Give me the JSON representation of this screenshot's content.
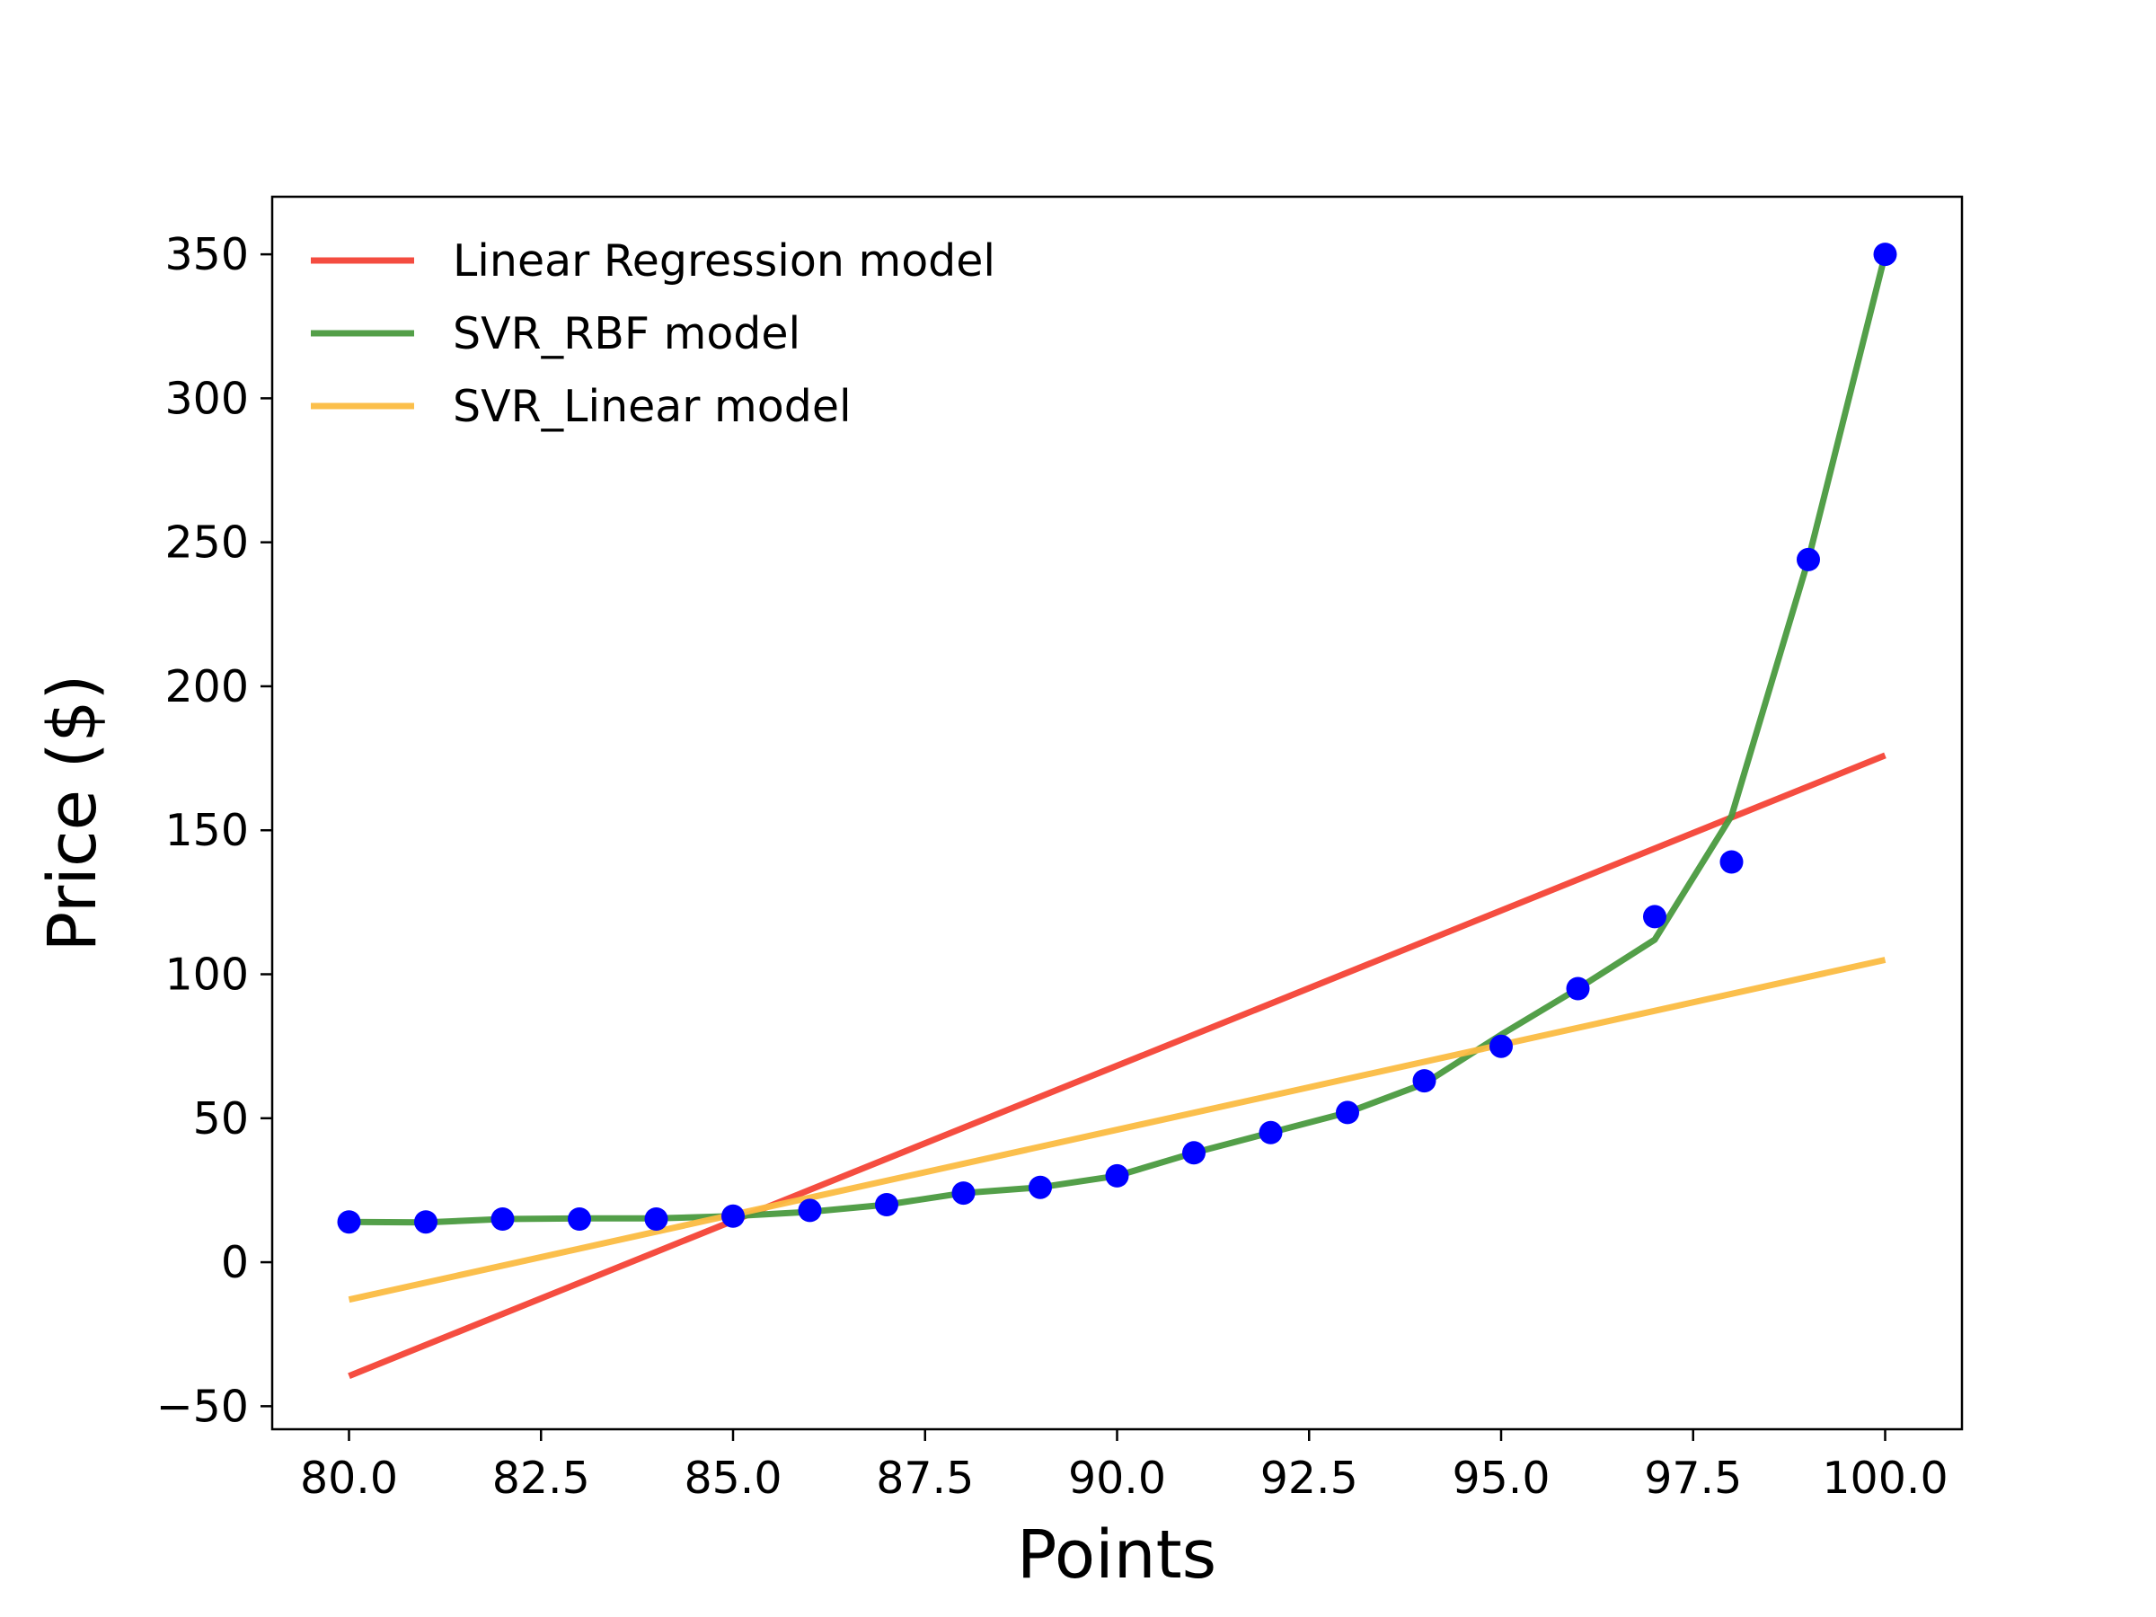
{
  "chart_data": {
    "type": "line",
    "title": "",
    "xlabel": "Points",
    "ylabel": "Price ($)",
    "xlim": [
      79.0,
      101.0
    ],
    "ylim": [
      -58.0,
      370.0
    ],
    "xticks": [
      80.0,
      82.5,
      85.0,
      87.5,
      90.0,
      92.5,
      95.0,
      97.5,
      100.0
    ],
    "xtick_labels": [
      "80.0",
      "82.5",
      "85.0",
      "87.5",
      "90.0",
      "92.5",
      "95.0",
      "97.5",
      "100.0"
    ],
    "yticks": [
      -50,
      0,
      50,
      100,
      150,
      200,
      250,
      300,
      350
    ],
    "ytick_labels": [
      "−50",
      "0",
      "50",
      "100",
      "150",
      "200",
      "250",
      "300",
      "350"
    ],
    "grid": false,
    "legend_position": "top-left",
    "scatter": {
      "color": "#0000ff",
      "x": [
        80,
        81,
        82,
        83,
        84,
        85,
        86,
        87,
        88,
        89,
        90,
        91,
        92,
        93,
        94,
        95,
        96,
        97,
        98,
        99,
        100
      ],
      "y": [
        14,
        14,
        15,
        15,
        15,
        16,
        18,
        20,
        24,
        26,
        30,
        38,
        45,
        52,
        63,
        75,
        95,
        120,
        139,
        244,
        350
      ]
    },
    "series": [
      {
        "name": "Linear Regression model",
        "color": "#f44336",
        "x": [
          80,
          100
        ],
        "y": [
          -39.5,
          176
        ]
      },
      {
        "name": "SVR_RBF model",
        "color": "#4a9a3f",
        "x": [
          80,
          81,
          82,
          83,
          84,
          85,
          86,
          87,
          88,
          89,
          90,
          91,
          92,
          93,
          94,
          95,
          96,
          97,
          98,
          99,
          100
        ],
        "y": [
          14,
          13.8,
          15,
          15.2,
          15.2,
          16,
          17.5,
          20,
          24,
          26,
          30,
          38,
          45,
          52,
          62,
          79,
          95,
          112,
          155,
          244,
          350
        ]
      },
      {
        "name": "SVR_Linear model",
        "color": "#fbbc42",
        "x": [
          80,
          100
        ],
        "y": [
          -13,
          105
        ]
      }
    ]
  }
}
